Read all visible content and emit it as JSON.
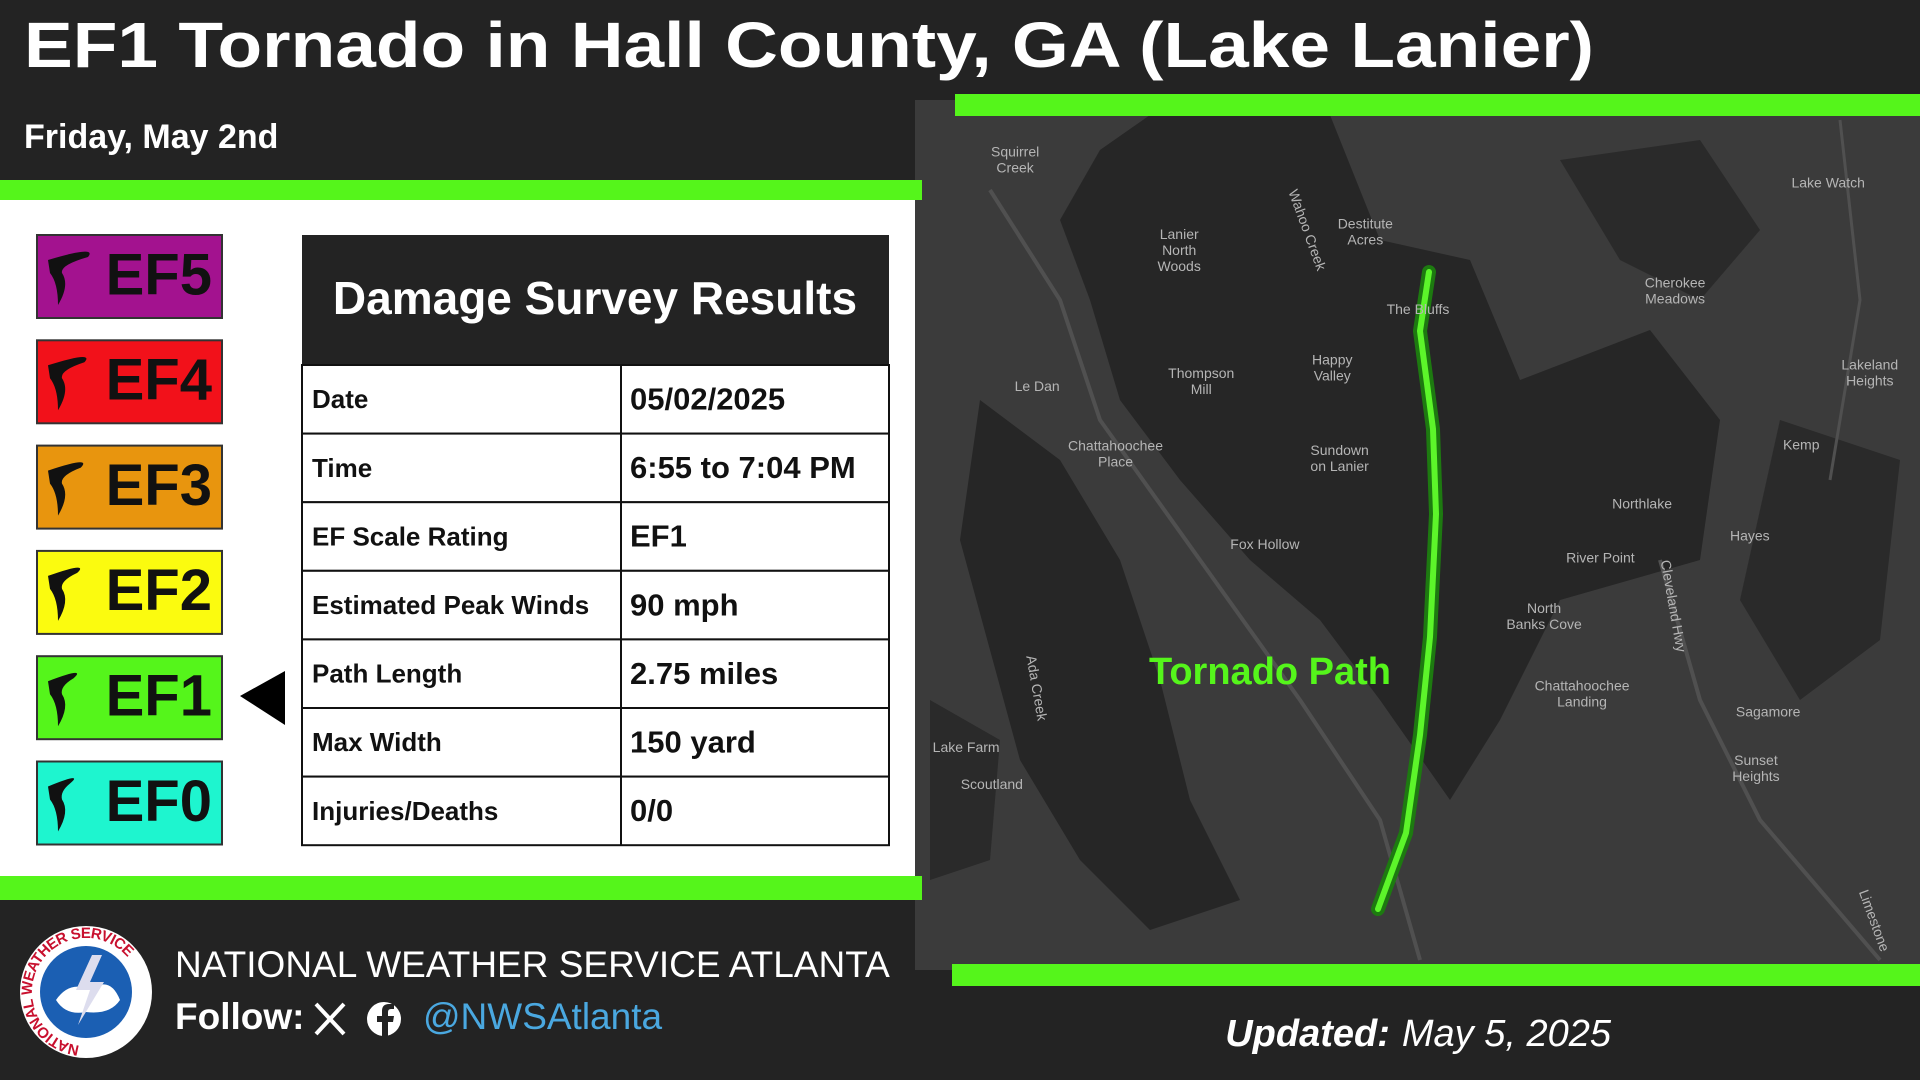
{
  "header": {
    "title": "EF1 Tornado in Hall County, GA (Lake Lanier)",
    "subtitle": "Friday, May 2nd"
  },
  "ef_scale": [
    {
      "label": "EF5",
      "color": "#a3128f"
    },
    {
      "label": "EF4",
      "color": "#f2111a"
    },
    {
      "label": "EF3",
      "color": "#e8950e"
    },
    {
      "label": "EF2",
      "color": "#fbfb0f"
    },
    {
      "label": "EF1",
      "color": "#55f51b"
    },
    {
      "label": "EF0",
      "color": "#1ef5cf"
    }
  ],
  "highlighted": "EF1",
  "table": {
    "title": "Damage Survey Results",
    "rows": [
      [
        "Date",
        "05/02/2025"
      ],
      [
        "Time",
        "6:55 to 7:04 PM"
      ],
      [
        "EF Scale Rating",
        "EF1"
      ],
      [
        "Estimated Peak Winds",
        "90 mph"
      ],
      [
        "Path Length",
        "2.75 miles"
      ],
      [
        "Max Width",
        "150 yard"
      ],
      [
        "Injuries/Deaths",
        "0/0"
      ]
    ]
  },
  "map": {
    "path_label": "Tornado Path",
    "places": [
      [
        "Squirrel",
        "Creek"
      ],
      [
        "Lanier",
        "North",
        "Woods"
      ],
      [
        "Destitute",
        "Acres"
      ],
      [
        "Wahoo Creek"
      ],
      [
        "The Bluffs"
      ],
      [
        "Lake Watch"
      ],
      [
        "Cherokee",
        "Meadows"
      ],
      [
        "Le Dan"
      ],
      [
        "Thompson",
        "Mill"
      ],
      [
        "Happy",
        "Valley"
      ],
      [
        "Lakeland",
        "Heights"
      ],
      [
        "Chattahoochee",
        "Place"
      ],
      [
        "Sundown",
        "on Lanier"
      ],
      [
        "Kemp"
      ],
      [
        "Northlake"
      ],
      [
        "Hayes"
      ],
      [
        "Fox Hollow"
      ],
      [
        "River Point"
      ],
      [
        "Cleveland Hwy"
      ],
      [
        "North",
        "Banks Cove"
      ],
      [
        "Ada Creek"
      ],
      [
        "Chattahoochee",
        "Landing"
      ],
      [
        "Sagamore"
      ],
      [
        "Lake Farm"
      ],
      [
        "Sunset",
        "Heights"
      ],
      [
        "Scoutland"
      ],
      [
        "Limestone"
      ]
    ]
  },
  "footer": {
    "logo_text": "NATIONAL WEATHER SERVICE",
    "org": "NATIONAL WEATHER SERVICE ATLANTA",
    "follow": "Follow:",
    "handle": "@NWSAtlanta",
    "updated_label": "Updated:",
    "updated_date": "May 5, 2025"
  }
}
